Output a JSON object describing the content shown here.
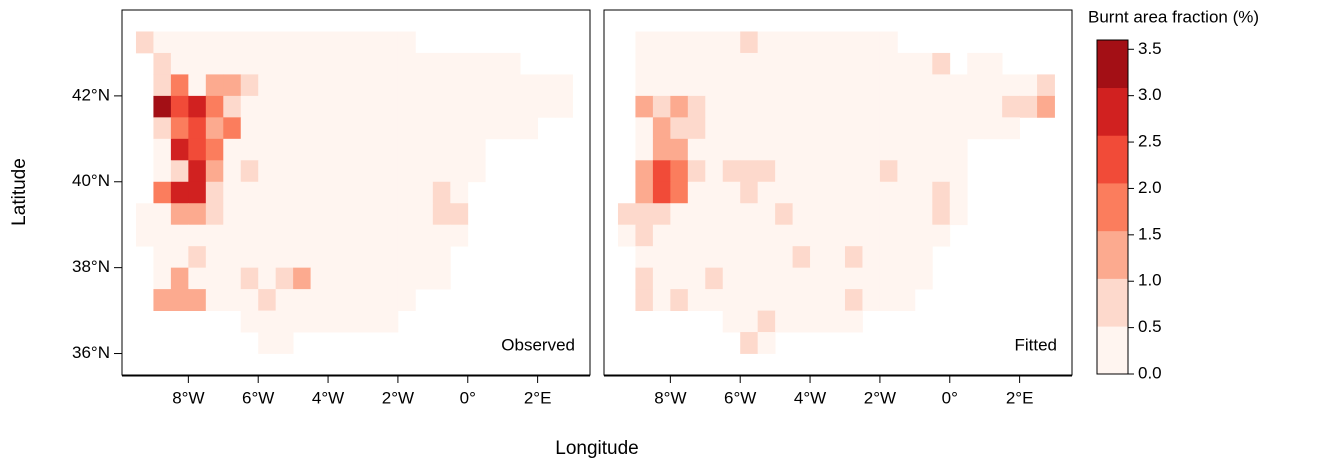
{
  "chart_data": {
    "type": "heatmap-panels",
    "x_label": "Longitude",
    "y_label": "Latitude",
    "xlim": [
      -9.9,
      3.5
    ],
    "ylim": [
      35.5,
      44
    ],
    "xticks": [
      {
        "value": -8,
        "label": "8°W"
      },
      {
        "value": -6,
        "label": "6°W"
      },
      {
        "value": -4,
        "label": "4°W"
      },
      {
        "value": -2,
        "label": "2°W"
      },
      {
        "value": 0,
        "label": "0°"
      },
      {
        "value": 2,
        "label": "2°E"
      }
    ],
    "yticks": [
      {
        "value": 36,
        "label": "36°N"
      },
      {
        "value": 38,
        "label": "38°N"
      },
      {
        "value": 40,
        "label": "40°N"
      },
      {
        "value": 42,
        "label": "42°N"
      }
    ],
    "x": [
      -9.25,
      -8.75,
      -8.25,
      -7.75,
      -7.25,
      -6.75,
      -6.25,
      -5.75,
      -5.25,
      -4.75,
      -4.25,
      -3.75,
      -3.25,
      -2.75,
      -2.25,
      -1.75,
      -1.25,
      -0.75,
      -0.25,
      0.25,
      0.75,
      1.25,
      1.75,
      2.25,
      2.75
    ],
    "y": [
      43.25,
      42.75,
      42.25,
      41.75,
      41.25,
      40.75,
      40.25,
      39.75,
      39.25,
      38.75,
      38.25,
      37.75,
      37.25,
      36.75,
      36.25
    ],
    "colorbar": {
      "title": "Burnt area fraction (%)",
      "clim": [
        0,
        3.6
      ],
      "colors": [
        "#fff5f0",
        "#fdd9cc",
        "#fcaa8f",
        "#fb7d5d",
        "#f14b38",
        "#d12120",
        "#a30f15"
      ],
      "ticks": [
        {
          "value": 0,
          "label": "0.0"
        },
        0.5,
        {
          "value": 1,
          "label": "1.0"
        },
        1.5,
        {
          "value": 2,
          "label": "2.0"
        },
        2.5,
        {
          "value": 3,
          "label": "3.0"
        },
        3.5
      ]
    },
    "panels": [
      {
        "label": "Observed",
        "z": [
          [
            0.7,
            0.2,
            0.2,
            0.2,
            0.2,
            0.2,
            0.2,
            0.2,
            0.2,
            0.2,
            0.2,
            0.2,
            0.2,
            0.2,
            0.2,
            0.2,
            null,
            null,
            null,
            null,
            null,
            null,
            null,
            null,
            null
          ],
          [
            null,
            0.7,
            0.2,
            0.2,
            0.2,
            0.2,
            0.2,
            0.2,
            0.2,
            0.2,
            0.2,
            0.2,
            0.2,
            0.2,
            0.2,
            0.2,
            0.2,
            0.2,
            0.2,
            0.2,
            0.2,
            0.2,
            null,
            null,
            null
          ],
          [
            null,
            0.7,
            1.7,
            0.2,
            1.2,
            1.2,
            0.7,
            0.2,
            0.2,
            0.2,
            0.2,
            0.2,
            0.2,
            0.2,
            0.2,
            0.2,
            0.2,
            0.2,
            0.2,
            0.2,
            0.2,
            0.2,
            0.2,
            0.2,
            0.2
          ],
          [
            null,
            3.2,
            2.2,
            2.7,
            1.7,
            0.7,
            0.2,
            0.2,
            0.2,
            0.2,
            0.2,
            0.2,
            0.2,
            0.2,
            0.2,
            0.2,
            0.2,
            0.2,
            0.2,
            0.2,
            0.2,
            0.2,
            0.2,
            0.2,
            0.2
          ],
          [
            null,
            0.7,
            1.7,
            2.2,
            1.2,
            1.7,
            0.2,
            0.2,
            0.2,
            0.2,
            0.2,
            0.2,
            0.2,
            0.2,
            0.2,
            0.2,
            0.2,
            0.2,
            0.2,
            0.2,
            0.2,
            0.2,
            0.2,
            null,
            null
          ],
          [
            null,
            0.2,
            2.7,
            2.2,
            1.7,
            0.2,
            0.2,
            0.2,
            0.2,
            0.2,
            0.2,
            0.2,
            0.2,
            0.2,
            0.2,
            0.2,
            0.2,
            0.2,
            0.2,
            0.2,
            null,
            null,
            null,
            null,
            null
          ],
          [
            null,
            0.2,
            0.7,
            2.7,
            1.2,
            0.2,
            0.7,
            0.2,
            0.2,
            0.2,
            0.2,
            0.2,
            0.2,
            0.2,
            0.2,
            0.2,
            0.2,
            0.2,
            0.2,
            0.2,
            null,
            null,
            null,
            null,
            null
          ],
          [
            null,
            1.7,
            2.7,
            2.7,
            0.7,
            0.2,
            0.2,
            0.2,
            0.2,
            0.2,
            0.2,
            0.2,
            0.2,
            0.2,
            0.2,
            0.2,
            0.2,
            0.7,
            0.2,
            null,
            null,
            null,
            null,
            null,
            null
          ],
          [
            0.2,
            0.2,
            1.2,
            1.2,
            0.7,
            0.2,
            0.2,
            0.2,
            0.2,
            0.2,
            0.2,
            0.2,
            0.2,
            0.2,
            0.2,
            0.2,
            0.2,
            0.7,
            0.7,
            null,
            null,
            null,
            null,
            null,
            null
          ],
          [
            0.2,
            0.2,
            0.2,
            0.2,
            0.2,
            0.2,
            0.2,
            0.2,
            0.2,
            0.2,
            0.2,
            0.2,
            0.2,
            0.2,
            0.2,
            0.2,
            0.2,
            0.2,
            0.2,
            null,
            null,
            null,
            null,
            null,
            null
          ],
          [
            null,
            0.2,
            0.2,
            0.7,
            0.2,
            0.2,
            0.2,
            0.2,
            0.2,
            0.2,
            0.2,
            0.2,
            0.2,
            0.2,
            0.2,
            0.2,
            0.2,
            0.2,
            null,
            null,
            null,
            null,
            null,
            null,
            null
          ],
          [
            null,
            0.2,
            1.2,
            0.2,
            0.2,
            0.2,
            0.7,
            0.2,
            0.7,
            1.2,
            0.2,
            0.2,
            0.2,
            0.2,
            0.2,
            0.2,
            0.2,
            0.2,
            null,
            null,
            null,
            null,
            null,
            null,
            null
          ],
          [
            null,
            1.2,
            1.2,
            1.2,
            0.2,
            0.2,
            0.2,
            0.7,
            0.2,
            0.2,
            0.2,
            0.2,
            0.2,
            0.2,
            0.2,
            0.2,
            null,
            null,
            null,
            null,
            null,
            null,
            null,
            null,
            null
          ],
          [
            null,
            null,
            null,
            null,
            null,
            null,
            0.2,
            0.2,
            0.2,
            0.2,
            0.2,
            0.2,
            0.2,
            0.2,
            0.2,
            null,
            null,
            null,
            null,
            null,
            null,
            null,
            null,
            null,
            null
          ],
          [
            null,
            null,
            null,
            null,
            null,
            null,
            null,
            0.2,
            0.2,
            null,
            null,
            null,
            null,
            null,
            null,
            null,
            null,
            null,
            null,
            null,
            null,
            null,
            null,
            null,
            null
          ]
        ]
      },
      {
        "label": "Fitted",
        "z": [
          [
            null,
            0.2,
            0.2,
            0.2,
            0.2,
            0.2,
            0.2,
            0.7,
            0.2,
            0.2,
            0.2,
            0.2,
            0.2,
            0.2,
            0.2,
            0.2,
            null,
            null,
            null,
            null,
            null,
            null,
            null,
            null,
            null
          ],
          [
            null,
            0.2,
            0.2,
            0.2,
            0.2,
            0.2,
            0.2,
            0.2,
            0.2,
            0.2,
            0.2,
            0.2,
            0.2,
            0.2,
            0.2,
            0.2,
            0.2,
            0.2,
            0.7,
            null,
            0.2,
            0.2,
            null,
            null,
            null
          ],
          [
            null,
            0.2,
            0.2,
            0.2,
            0.2,
            0.2,
            0.2,
            0.2,
            0.2,
            0.2,
            0.2,
            0.2,
            0.2,
            0.2,
            0.2,
            0.2,
            0.2,
            0.2,
            0.2,
            0.2,
            0.2,
            0.2,
            0.2,
            0.2,
            0.7
          ],
          [
            null,
            1.2,
            0.7,
            1.2,
            0.7,
            0.2,
            0.2,
            0.2,
            0.2,
            0.2,
            0.2,
            0.2,
            0.2,
            0.2,
            0.2,
            0.2,
            0.2,
            0.2,
            0.2,
            0.2,
            0.2,
            0.2,
            0.7,
            0.7,
            1.2
          ],
          [
            null,
            0.2,
            1.2,
            0.7,
            0.7,
            0.2,
            0.2,
            0.2,
            0.2,
            0.2,
            0.2,
            0.2,
            0.2,
            0.2,
            0.2,
            0.2,
            0.2,
            0.2,
            0.2,
            0.2,
            0.2,
            0.2,
            0.2,
            null,
            null
          ],
          [
            null,
            0.2,
            1.2,
            1.2,
            0.2,
            0.2,
            0.2,
            0.2,
            0.2,
            0.2,
            0.2,
            0.2,
            0.2,
            0.2,
            0.2,
            0.2,
            0.2,
            0.2,
            0.2,
            0.2,
            null,
            null,
            null,
            null,
            null
          ],
          [
            null,
            1.2,
            2.2,
            1.7,
            0.7,
            0.2,
            0.7,
            0.7,
            0.7,
            0.2,
            0.2,
            0.2,
            0.2,
            0.2,
            0.2,
            0.7,
            0.2,
            0.2,
            0.2,
            0.2,
            null,
            null,
            null,
            null,
            null
          ],
          [
            null,
            1.2,
            2.2,
            1.7,
            0.2,
            0.2,
            0.2,
            0.7,
            0.2,
            0.2,
            0.2,
            0.2,
            0.2,
            0.2,
            0.2,
            0.2,
            0.2,
            0.2,
            0.7,
            0.2,
            null,
            null,
            null,
            null,
            null
          ],
          [
            0.7,
            0.7,
            0.7,
            0.2,
            0.2,
            0.2,
            0.2,
            0.2,
            0.2,
            0.7,
            0.2,
            0.2,
            0.2,
            0.2,
            0.2,
            0.2,
            0.2,
            0.2,
            0.7,
            0.2,
            null,
            null,
            null,
            null,
            null
          ],
          [
            0.2,
            0.7,
            0.2,
            0.2,
            0.2,
            0.2,
            0.2,
            0.2,
            0.2,
            0.2,
            0.2,
            0.2,
            0.2,
            0.2,
            0.2,
            0.2,
            0.2,
            0.2,
            0.2,
            null,
            null,
            null,
            null,
            null,
            null
          ],
          [
            null,
            0.2,
            0.2,
            0.2,
            0.2,
            0.2,
            0.2,
            0.2,
            0.2,
            0.2,
            0.7,
            0.2,
            0.2,
            0.7,
            0.2,
            0.2,
            0.2,
            0.2,
            null,
            null,
            null,
            null,
            null,
            null,
            null
          ],
          [
            null,
            0.7,
            0.2,
            0.2,
            0.2,
            0.7,
            0.2,
            0.2,
            0.2,
            0.2,
            0.2,
            0.2,
            0.2,
            0.2,
            0.2,
            0.2,
            0.2,
            0.2,
            null,
            null,
            null,
            null,
            null,
            null,
            null
          ],
          [
            null,
            0.7,
            0.2,
            0.7,
            0.2,
            0.2,
            0.2,
            0.2,
            0.2,
            0.2,
            0.2,
            0.2,
            0.2,
            0.7,
            0.2,
            0.2,
            0.2,
            null,
            null,
            null,
            null,
            null,
            null,
            null,
            null
          ],
          [
            null,
            null,
            null,
            null,
            null,
            null,
            0.2,
            0.2,
            0.7,
            0.2,
            0.2,
            0.2,
            0.2,
            0.2,
            null,
            null,
            null,
            null,
            null,
            null,
            null,
            null,
            null,
            null,
            null
          ],
          [
            null,
            null,
            null,
            null,
            null,
            null,
            null,
            0.7,
            0.2,
            null,
            null,
            null,
            null,
            null,
            null,
            null,
            null,
            null,
            null,
            null,
            null,
            null,
            null,
            null,
            null
          ]
        ]
      }
    ]
  }
}
